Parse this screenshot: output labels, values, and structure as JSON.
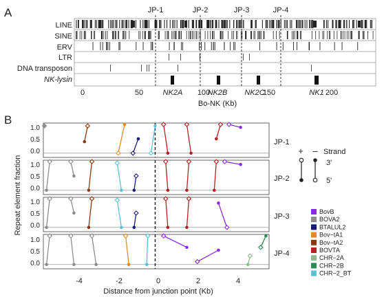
{
  "figure": {
    "panel_a_letter": "A",
    "panel_b_letter": "B"
  },
  "panel_a": {
    "track_labels": [
      "LINE",
      "SINE",
      "ERV",
      "LTR",
      "DNA transposon",
      "NK-lysin"
    ],
    "junction_labels": [
      "JP-1",
      "JP-2",
      "JP-3",
      "JP-4"
    ],
    "gene_labels": [
      "NK2A",
      "NK2B",
      "NK2C",
      "NK1"
    ],
    "x_ticks": [
      "0",
      "50",
      "100",
      "150",
      "200"
    ],
    "x_axis_label": "Bo-NK (Kb)"
  },
  "panel_b": {
    "y_axis_label": "Repeat element fraction",
    "x_axis_label": "Distance from junction point (Kb)",
    "y_ticks": [
      "0.0",
      "0.5",
      "1.0"
    ],
    "x_ticks": [
      "-4",
      "-2",
      "0",
      "2",
      "4"
    ],
    "row_labels": [
      "JP-1",
      "JP-2",
      "JP-3",
      "JP-4"
    ],
    "strand_legend": {
      "title": "Strand",
      "plus": "+",
      "minus": "–",
      "three_prime": "3'",
      "five_prime": "5'"
    },
    "color_legend": [
      {
        "name": "BovB",
        "color": "#8a2be2"
      },
      {
        "name": "BOVA2",
        "color": "#8c8c8c"
      },
      {
        "name": "BTALUL2",
        "color": "#1c1c7a"
      },
      {
        "name": "Bov−tA1",
        "color": "#e38b2c"
      },
      {
        "name": "Bov−tA2",
        "color": "#8b3a0f"
      },
      {
        "name": "BOVTA",
        "color": "#b22222"
      },
      {
        "name": "CHR−2A",
        "color": "#8fbc8f"
      },
      {
        "name": "CHR−2B",
        "color": "#2e8b57"
      },
      {
        "name": "CHR−2_BT",
        "color": "#5fc0d8"
      }
    ]
  },
  "chart_data": {
    "type": "scatter",
    "x_range": [
      -5.3,
      5.4
    ],
    "y_range": [
      -0.15,
      1.05
    ],
    "xlabel": "Distance from junction point (Kb)",
    "ylabel": "Repeat element fraction",
    "panels": [
      {
        "name": "JP-1",
        "segments": [
          {
            "element": "BOVA2",
            "x1": -5.25,
            "y1": 0.95,
            "x2": -5.25,
            "y2": 0.95,
            "strand": "+"
          },
          {
            "element": "Bov−tA2",
            "x1": -3.2,
            "y1": 0.95,
            "x2": -3.35,
            "y2": 0.4,
            "strand": "+"
          },
          {
            "element": "Bov−tA1",
            "x1": -1.75,
            "y1": 0.0,
            "x2": -1.45,
            "y2": 1.0,
            "strand": "+"
          },
          {
            "element": "BTALUL2",
            "x1": -1.05,
            "y1": 0.0,
            "x2": -0.8,
            "y2": 0.5,
            "strand": "+"
          },
          {
            "element": "CHR−2_BT",
            "x1": -0.2,
            "y1": 0.0,
            "x2": 0.0,
            "y2": 0.95,
            "strand": "+"
          },
          {
            "element": "BOVTA",
            "x1": 0.4,
            "y1": 1.0,
            "x2": 0.6,
            "y2": 0.0,
            "strand": "–"
          },
          {
            "element": "BOVTA",
            "x1": 1.5,
            "y1": 1.0,
            "x2": 1.7,
            "y2": 0.0,
            "strand": "–"
          },
          {
            "element": "BOVTA",
            "x1": 3.1,
            "y1": 1.0,
            "x2": 2.9,
            "y2": 0.5,
            "strand": "+"
          },
          {
            "element": "BovB",
            "x1": 3.5,
            "y1": 1.0,
            "x2": 4.05,
            "y2": 0.9,
            "strand": "+"
          }
        ]
      },
      {
        "name": "JP-2",
        "segments": [
          {
            "element": "BOVA2",
            "x1": -5.0,
            "y1": 1.0,
            "x2": -5.15,
            "y2": 0.0,
            "strand": "+"
          },
          {
            "element": "BOVA2",
            "x1": -4.0,
            "y1": 1.0,
            "x2": -3.85,
            "y2": 0.5,
            "strand": "–"
          },
          {
            "element": "Bov−tA2",
            "x1": -3.0,
            "y1": 1.0,
            "x2": -3.15,
            "y2": 0.0,
            "strand": "+"
          },
          {
            "element": "CHR−2_BT",
            "x1": -1.8,
            "y1": 0.95,
            "x2": -1.6,
            "y2": 0.0,
            "strand": "–"
          },
          {
            "element": "BTALUL2",
            "x1": -0.9,
            "y1": 0.5,
            "x2": -1.0,
            "y2": 0.0,
            "strand": "+"
          },
          {
            "element": "BOVTA",
            "x1": 0.5,
            "y1": 1.0,
            "x2": 0.6,
            "y2": 0.0,
            "strand": "–"
          },
          {
            "element": "BOVTA",
            "x1": 1.6,
            "y1": 1.0,
            "x2": 1.5,
            "y2": 0.0,
            "strand": "–"
          },
          {
            "element": "BOVTA",
            "x1": 2.9,
            "y1": 1.0,
            "x2": 2.8,
            "y2": 0.0,
            "strand": "–"
          },
          {
            "element": "BovB",
            "x1": 3.3,
            "y1": 1.0,
            "x2": 4.05,
            "y2": 0.9,
            "strand": "+"
          }
        ]
      },
      {
        "name": "JP-3",
        "segments": [
          {
            "element": "BOVA2",
            "x1": -5.0,
            "y1": 1.0,
            "x2": -5.15,
            "y2": 0.0,
            "strand": "+"
          },
          {
            "element": "BOVA2",
            "x1": -4.0,
            "y1": 1.0,
            "x2": -3.85,
            "y2": 0.5,
            "strand": "–"
          },
          {
            "element": "Bov−tA2",
            "x1": -3.0,
            "y1": 1.0,
            "x2": -3.15,
            "y2": 0.0,
            "strand": "+"
          },
          {
            "element": "CHR−2_BT",
            "x1": -1.8,
            "y1": 0.95,
            "x2": -1.6,
            "y2": 0.0,
            "strand": "–"
          },
          {
            "element": "BTALUL2",
            "x1": -0.9,
            "y1": 0.5,
            "x2": -1.0,
            "y2": 0.0,
            "strand": "+"
          },
          {
            "element": "BOVTA",
            "x1": 0.5,
            "y1": 1.0,
            "x2": 0.6,
            "y2": 0.0,
            "strand": "–"
          },
          {
            "element": "BOVTA",
            "x1": 1.6,
            "y1": 1.0,
            "x2": 1.5,
            "y2": 0.0,
            "strand": "–"
          },
          {
            "element": "BovB",
            "x1": 3.4,
            "y1": 0.0,
            "x2": 3.0,
            "y2": 0.85,
            "strand": "–"
          }
        ]
      },
      {
        "name": "JP-4",
        "segments": [
          {
            "element": "BOVA2",
            "x1": -5.0,
            "y1": 1.0,
            "x2": -5.15,
            "y2": 0.0,
            "strand": "+"
          },
          {
            "element": "BOVA2",
            "x1": -4.0,
            "y1": 1.0,
            "x2": -3.85,
            "y2": 0.0,
            "strand": "–"
          },
          {
            "element": "BOVA2",
            "x1": -3.0,
            "y1": 1.0,
            "x2": -2.8,
            "y2": 0.0,
            "strand": "–"
          },
          {
            "element": "Bov−tA1",
            "x1": -1.4,
            "y1": 1.0,
            "x2": -1.25,
            "y2": 0.0,
            "strand": "–"
          },
          {
            "element": "CHR−2_BT",
            "x1": -0.35,
            "y1": 1.0,
            "x2": -0.4,
            "y2": 0.0,
            "strand": "–"
          },
          {
            "element": "BovB",
            "x1": 0.4,
            "y1": 1.0,
            "x2": 1.5,
            "y2": 0.6,
            "strand": "–"
          },
          {
            "element": "BovB",
            "x1": 2.0,
            "y1": 0.1,
            "x2": 3.0,
            "y2": 0.5,
            "strand": "+"
          },
          {
            "element": "CHR−2A",
            "x1": 4.5,
            "y1": 0.3,
            "x2": 4.4,
            "y2": 0.0,
            "strand": "+"
          },
          {
            "element": "CHR−2B",
            "x1": 5.0,
            "y1": 0.6,
            "x2": 5.25,
            "y2": 1.0,
            "strand": "+"
          }
        ]
      }
    ]
  }
}
